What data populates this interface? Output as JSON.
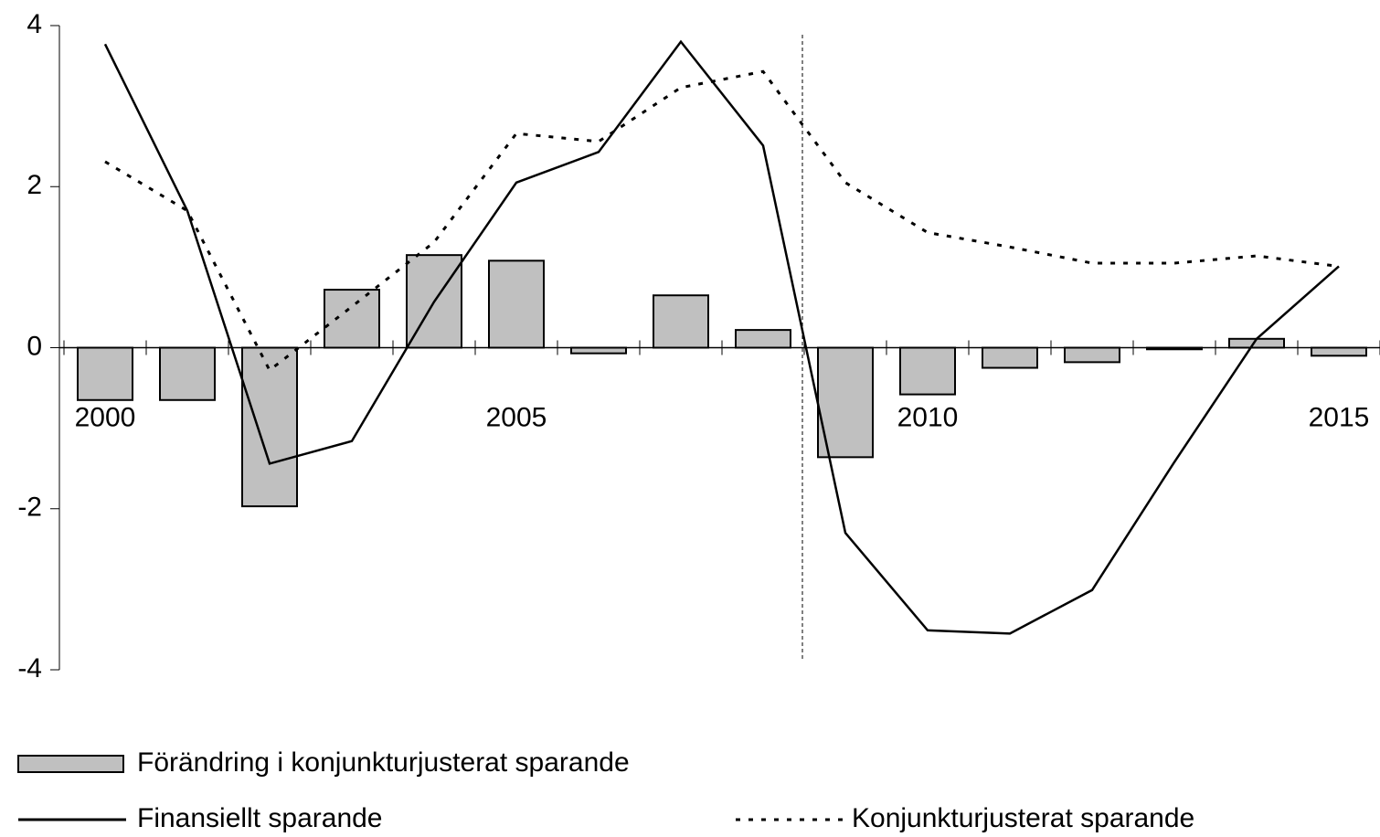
{
  "chart_data": {
    "type": "bar",
    "categories": [
      "2000",
      null,
      null,
      null,
      null,
      "2005",
      null,
      null,
      null,
      null,
      "2010",
      null,
      null,
      null,
      null,
      "2015"
    ],
    "series": [
      {
        "name": "Förändring i konjunkturjusterat sparande",
        "type": "bar",
        "color": "#c0c0c0",
        "values": [
          -0.65,
          -0.65,
          -1.97,
          0.72,
          1.15,
          1.08,
          -0.07,
          0.65,
          0.22,
          -1.36,
          -0.58,
          -0.25,
          -0.18,
          -0.02,
          0.11,
          -0.1
        ]
      },
      {
        "name": "Finansiellt sparande",
        "type": "line",
        "color": "#000000",
        "dash": "solid",
        "values": [
          3.77,
          1.7,
          -1.44,
          -1.16,
          0.57,
          2.05,
          2.43,
          3.8,
          2.51,
          -2.3,
          -3.51,
          -3.55,
          -3.01,
          -1.42,
          0.11,
          1.01
        ]
      },
      {
        "name": "Konjunkturjusterat sparande",
        "type": "line",
        "color": "#000000",
        "dash": "dotted",
        "values": [
          2.31,
          1.7,
          -0.28,
          0.51,
          1.31,
          2.66,
          2.56,
          3.23,
          3.43,
          2.05,
          1.43,
          1.25,
          1.05,
          1.05,
          1.14,
          1.01
        ]
      }
    ],
    "ylim": [
      -4,
      4
    ],
    "yticks": [
      -4,
      -2,
      0,
      2,
      4
    ],
    "grid": false
  }
}
